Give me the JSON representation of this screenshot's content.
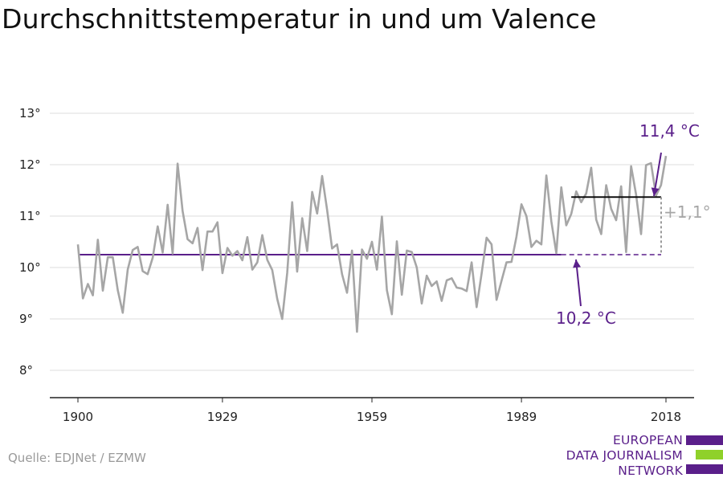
{
  "title": "Durchschnittstemperatur in und um Valence",
  "source": "Quelle: EDJNet / EZMW",
  "logo": {
    "lines": [
      "EUROPEAN",
      "DATA JOURNALISM",
      "NETWORK"
    ],
    "bar_colors": [
      "#5a1f8a",
      "#8fd12a",
      "#5a1f8a"
    ]
  },
  "colors": {
    "series": "#a6a6a6",
    "baseline": "#5a1f8a",
    "annotation": "#5a1f8a",
    "grid": "#dddddd",
    "axis": "#222222"
  },
  "chart_data": {
    "type": "line",
    "title": "Durchschnittstemperatur in und um Valence",
    "xlabel": "",
    "ylabel": "",
    "xlim": [
      1900,
      2018
    ],
    "ylim": [
      8,
      13
    ],
    "x_ticks": [
      1900,
      1929,
      1959,
      1989,
      2018
    ],
    "y_ticks": [
      8,
      9,
      10,
      11,
      12,
      13
    ],
    "y_tick_labels": [
      "8°",
      "9°",
      "10°",
      "11°",
      "12°",
      "13°"
    ],
    "grid": true,
    "x_start": 1900,
    "series": [
      {
        "values": [
          10.45,
          9.4,
          9.68,
          9.46,
          10.54,
          9.55,
          10.2,
          10.2,
          9.56,
          9.12,
          9.96,
          10.34,
          10.4,
          9.93,
          9.87,
          10.19,
          10.8,
          10.29,
          11.22,
          10.27,
          12.02,
          11.1,
          10.55,
          10.47,
          10.77,
          9.95,
          10.7,
          10.7,
          10.88,
          9.89,
          10.38,
          10.23,
          10.32,
          10.14,
          10.59,
          9.96,
          10.1,
          10.63,
          10.15,
          9.95,
          9.39,
          9.0,
          9.89,
          11.27,
          9.92,
          10.96,
          10.32,
          11.47,
          11.05,
          11.78,
          11.12,
          10.37,
          10.45,
          9.87,
          9.51,
          10.33,
          8.75,
          10.35,
          10.17,
          10.5,
          9.96,
          10.99,
          9.56,
          9.09,
          10.51,
          9.47,
          10.33,
          10.3,
          10.0,
          9.3,
          9.84,
          9.64,
          9.73,
          9.35,
          9.75,
          9.79,
          9.61,
          9.59,
          9.54,
          10.1,
          9.23,
          9.88,
          10.58,
          10.45,
          9.37,
          9.74,
          10.1,
          10.11,
          10.6,
          11.23,
          11.0,
          10.4,
          10.52,
          10.45,
          11.79,
          10.9,
          10.28,
          11.56,
          10.82,
          11.04,
          11.48,
          11.27,
          11.44,
          11.94,
          10.93,
          10.65,
          11.6,
          11.14,
          10.92,
          11.58,
          10.3,
          11.97,
          11.42,
          10.65,
          11.99,
          12.03,
          11.4,
          11.6,
          12.17
        ]
      }
    ],
    "baseline_value": 10.25,
    "baseline_label": "10,2 °C",
    "baseline_solid_until": 1997,
    "recent_mean_value": 11.37,
    "recent_mean_from": 1999,
    "recent_mean_label": "11,4 °C",
    "difference_label": "+1,1°"
  }
}
